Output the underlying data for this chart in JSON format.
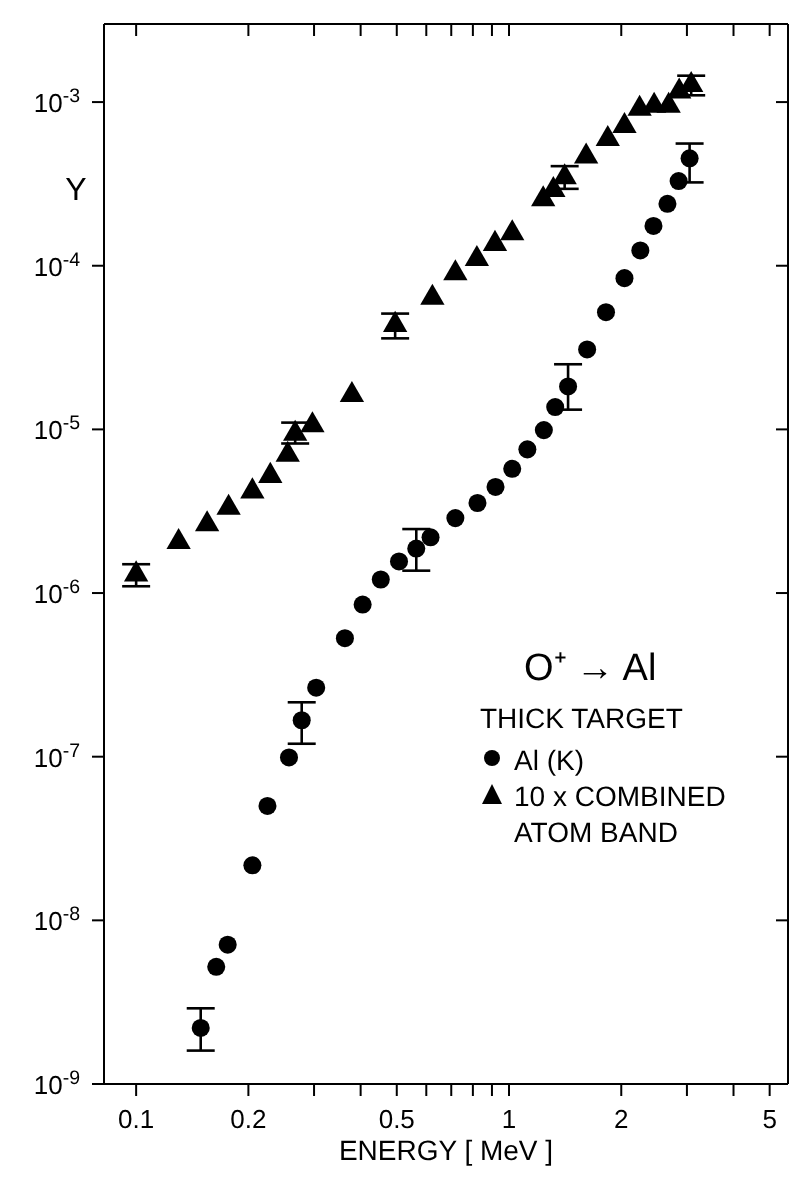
{
  "chart_data": {
    "type": "scatter",
    "xlabel": "ENERGY [ MeV ]",
    "ylabel": "Y",
    "legend_title": "THICK TARGET",
    "annotations": [
      "O⁺ → Al"
    ],
    "log": "xy",
    "legend": "right",
    "xlim": [
      0.082,
      5.6
    ],
    "xticks": [
      0.1,
      0.2,
      {
        "value": 0.3,
        "label": null
      },
      {
        "value": 0.4,
        "label": null
      },
      0.5,
      {
        "value": 0.6,
        "label": null
      },
      {
        "value": 0.7,
        "label": null
      },
      {
        "value": 0.8,
        "label": null
      },
      {
        "value": 0.9,
        "label": null
      },
      1,
      2,
      {
        "value": 3,
        "label": null
      },
      {
        "value": 4,
        "label": null
      },
      5
    ],
    "ylim": [
      1e-09,
      0.003
    ],
    "yticks": [
      {
        "value": 1e-09,
        "label": "10$^{-9}$"
      },
      {
        "value": 1e-08,
        "label": "10$^{-8}$"
      },
      {
        "value": 1e-07,
        "label": "10$^{-7}$"
      },
      {
        "value": 1e-06,
        "label": "10$^{-6}$"
      },
      {
        "value": 1e-05,
        "label": "10$^{-5}$"
      },
      {
        "value": 0.0001,
        "label": "10$^{-4}$"
      },
      {
        "value": 0.001,
        "label": "10$^{-3}$"
      }
    ],
    "series": [
      {
        "name": "Al (K)",
        "color": "#000000",
        "marker": "circle",
        "x": [
          0.149,
          0.164,
          0.176,
          0.205,
          0.225,
          0.257,
          0.278,
          0.304,
          0.363,
          0.405,
          0.453,
          0.507,
          0.564,
          0.616,
          0.718,
          0.823,
          0.92,
          1.02,
          1.12,
          1.24,
          1.33,
          1.44,
          1.62,
          1.82,
          2.04,
          2.25,
          2.44,
          2.66,
          2.85,
          3.05
        ],
        "values": [
          2.2e-09,
          5.2e-09,
          7.1e-09,
          2.17e-08,
          5e-08,
          9.9e-08,
          1.67e-07,
          2.64e-07,
          5.3e-07,
          8.5e-07,
          1.21e-06,
          1.56e-06,
          1.87e-06,
          2.19e-06,
          2.87e-06,
          3.55e-06,
          4.45e-06,
          5.74e-06,
          7.55e-06,
          9.9e-06,
          1.37e-05,
          1.83e-05,
          3.08e-05,
          5.2e-05,
          8.4e-05,
          0.000124,
          0.000175,
          0.000239,
          0.000329,
          0.000453
        ],
        "errors": [
          [
            1.6e-09,
            2.9e-09
          ],
          null,
          null,
          null,
          null,
          null,
          [
            1.2e-07,
            2.15e-07
          ],
          null,
          null,
          null,
          null,
          null,
          [
            1.37e-06,
            2.46e-06
          ],
          null,
          null,
          null,
          null,
          null,
          null,
          null,
          null,
          [
            1.32e-05,
            2.5e-05
          ],
          null,
          null,
          null,
          null,
          null,
          null,
          null,
          [
            0.000323,
            0.000558
          ]
        ]
      },
      {
        "name": "10 x COMBINED ATOM BAND",
        "color": "#000000",
        "marker": "triangle",
        "x": [
          0.1,
          0.13,
          0.155,
          0.177,
          0.205,
          0.229,
          0.255,
          0.267,
          0.297,
          0.379,
          0.495,
          0.623,
          0.718,
          0.82,
          0.917,
          1.02,
          1.235,
          1.315,
          1.41,
          1.61,
          1.84,
          2.04,
          2.24,
          2.45,
          2.68,
          2.86,
          3.08
        ],
        "values": [
          1.3e-06,
          2.05e-06,
          2.63e-06,
          3.32e-06,
          4.18e-06,
          5.2e-06,
          7e-06,
          9.4e-06,
          1.06e-05,
          1.62e-05,
          4.35e-05,
          6.37e-05,
          9e-05,
          0.00011,
          0.000136,
          0.000158,
          0.000255,
          0.00029,
          0.000347,
          0.000465,
          0.000595,
          0.000714,
          0.00091,
          0.00095,
          0.00095,
          0.00116,
          0.00127
        ],
        "errors": [
          [
            1.1e-06,
            1.5e-06
          ],
          null,
          null,
          null,
          null,
          null,
          null,
          [
            8.2e-06,
            1.1e-05
          ],
          null,
          null,
          [
            3.6e-05,
            5.1e-05
          ],
          null,
          null,
          null,
          null,
          null,
          null,
          null,
          [
            0.000295,
            0.000406
          ],
          null,
          null,
          null,
          null,
          null,
          null,
          null,
          [
            0.0011,
            0.00145
          ]
        ]
      }
    ]
  }
}
